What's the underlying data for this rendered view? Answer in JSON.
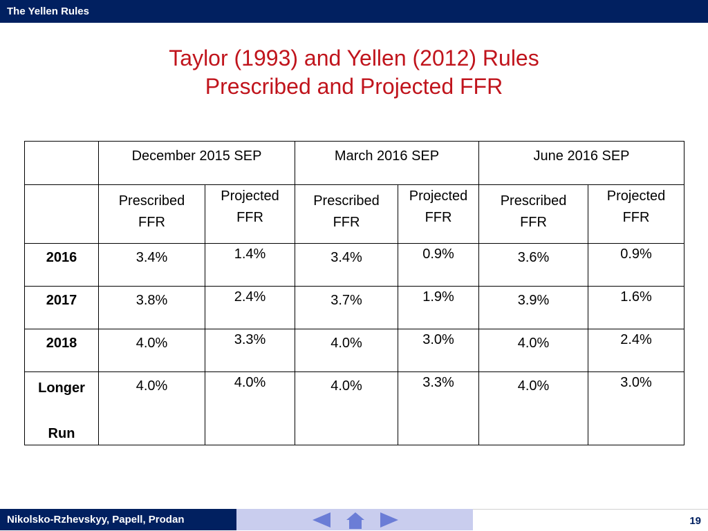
{
  "header": {
    "title": "The Yellen Rules"
  },
  "slide": {
    "title_line1": "Taylor (1993) and Yellen (2012) Rules",
    "title_line2": "Prescribed and Projected FFR"
  },
  "table": {
    "groups": [
      "December 2015 SEP",
      "March 2016 SEP",
      "June 2016 SEP"
    ],
    "sub": {
      "prescribed_line1": "Prescribed",
      "prescribed_line2": "FFR",
      "projected_line1": "Projected",
      "projected_line2": "FFR"
    },
    "rows": [
      {
        "label": "2016",
        "values": [
          "3.4%",
          "1.4%",
          "3.4%",
          "0.9%",
          "3.6%",
          "0.9%"
        ]
      },
      {
        "label": "2017",
        "values": [
          "3.8%",
          "2.4%",
          "3.7%",
          "1.9%",
          "3.9%",
          "1.6%"
        ]
      },
      {
        "label": "2018",
        "values": [
          "4.0%",
          "3.3%",
          "4.0%",
          "3.0%",
          "4.0%",
          "2.4%"
        ]
      },
      {
        "label_line1": "Longer",
        "label_line2": "Run",
        "values": [
          "4.0%",
          "4.0%",
          "4.0%",
          "3.3%",
          "4.0%",
          "3.0%"
        ]
      }
    ]
  },
  "footer": {
    "authors": "Nikolsko-Rzhevskyy, Papell, Prodan",
    "page_number": "19",
    "nav_icons": [
      "left-arrow-icon",
      "home-icon",
      "right-arrow-icon"
    ],
    "nav_color": "#6b7dd6"
  },
  "colors": {
    "bar": "#012060",
    "title": "#c0141c",
    "nav_band": "#c9cdee"
  }
}
